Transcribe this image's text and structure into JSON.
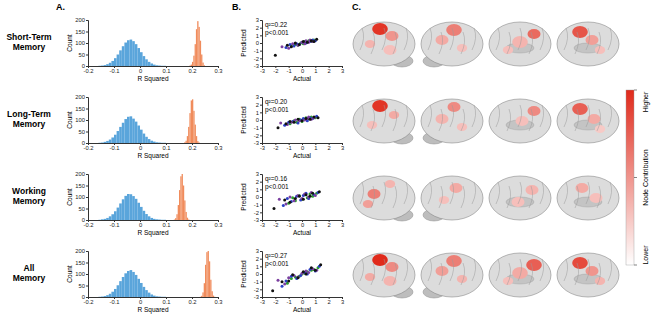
{
  "panel_labels": [
    "A.",
    "B.",
    "C."
  ],
  "row_labels": [
    "Short-Term Memory",
    "Long-Term Memory",
    "Working Memory",
    "All Memory"
  ],
  "colorbar": {
    "title": "Node Contribution",
    "high_label": "Higher",
    "low_label": "Lower"
  },
  "chart_data": [
    {
      "type": "histogram",
      "xlabel": "R Squared",
      "ylabel": "Count",
      "xlim": [
        -0.2,
        0.3
      ],
      "xticks": [
        -0.2,
        -0.1,
        0,
        0.1,
        0.2,
        0.3
      ],
      "ylim": [
        0,
        200
      ],
      "yticks": [
        0,
        50,
        100,
        150,
        200
      ],
      "series": [
        {
          "color": "#5aa5db",
          "bins": [
            -0.16,
            -0.15,
            -0.14,
            -0.13,
            -0.12,
            -0.11,
            -0.1,
            -0.09,
            -0.08,
            -0.07,
            -0.06,
            -0.05,
            -0.04,
            -0.03,
            -0.02,
            -0.01,
            0,
            0.01,
            0.02,
            0.03,
            0.04,
            0.05,
            0.06,
            0.07,
            0.08,
            0.09,
            0.1
          ],
          "values": [
            1,
            2,
            4,
            8,
            14,
            22,
            34,
            50,
            68,
            86,
            102,
            112,
            115,
            108,
            95,
            78,
            60,
            43,
            29,
            18,
            11,
            6,
            3,
            2,
            1,
            1
          ]
        },
        {
          "color": "#f08c5c",
          "bins": [
            0.19,
            0.195,
            0.2,
            0.205,
            0.21,
            0.215,
            0.22,
            0.225,
            0.23,
            0.235,
            0.24,
            0.245,
            0.25
          ],
          "values": [
            2,
            6,
            18,
            45,
            95,
            160,
            195,
            170,
            110,
            50,
            15,
            3
          ]
        }
      ]
    },
    {
      "type": "histogram",
      "xlabel": "R Squared",
      "ylabel": "Count",
      "xlim": [
        -0.2,
        0.3
      ],
      "xticks": [
        -0.2,
        -0.1,
        0,
        0.1,
        0.2,
        0.3
      ],
      "ylim": [
        0,
        200
      ],
      "yticks": [
        0,
        50,
        100,
        150,
        200
      ],
      "series": [
        {
          "color": "#5aa5db",
          "bins": [
            -0.16,
            -0.15,
            -0.14,
            -0.13,
            -0.12,
            -0.11,
            -0.1,
            -0.09,
            -0.08,
            -0.07,
            -0.06,
            -0.05,
            -0.04,
            -0.03,
            -0.02,
            -0.01,
            0,
            0.01,
            0.02,
            0.03,
            0.04,
            0.05,
            0.06,
            0.07,
            0.08,
            0.09,
            0.1
          ],
          "values": [
            1,
            2,
            5,
            9,
            15,
            24,
            36,
            52,
            70,
            88,
            104,
            114,
            116,
            106,
            93,
            76,
            58,
            41,
            27,
            17,
            10,
            6,
            3,
            2,
            1,
            1
          ]
        },
        {
          "color": "#f08c5c",
          "bins": [
            0.17,
            0.175,
            0.18,
            0.185,
            0.19,
            0.195,
            0.2,
            0.205,
            0.21,
            0.215,
            0.22,
            0.225,
            0.23
          ],
          "values": [
            3,
            10,
            30,
            70,
            130,
            185,
            190,
            140,
            80,
            30,
            8,
            2
          ]
        }
      ]
    },
    {
      "type": "histogram",
      "xlabel": "R Squared",
      "ylabel": "Count",
      "xlim": [
        -0.2,
        0.3
      ],
      "xticks": [
        -0.2,
        -0.1,
        0,
        0.1,
        0.2,
        0.3
      ],
      "ylim": [
        0,
        200
      ],
      "yticks": [
        0,
        50,
        100,
        150,
        200
      ],
      "series": [
        {
          "color": "#5aa5db",
          "bins": [
            -0.16,
            -0.15,
            -0.14,
            -0.13,
            -0.12,
            -0.11,
            -0.1,
            -0.09,
            -0.08,
            -0.07,
            -0.06,
            -0.05,
            -0.04,
            -0.03,
            -0.02,
            -0.01,
            0,
            0.01,
            0.02,
            0.03,
            0.04,
            0.05,
            0.06,
            0.07,
            0.08,
            0.09,
            0.1
          ],
          "values": [
            1,
            3,
            5,
            9,
            16,
            25,
            38,
            54,
            72,
            90,
            105,
            113,
            112,
            104,
            92,
            75,
            57,
            40,
            26,
            16,
            9,
            5,
            3,
            2,
            1,
            1
          ]
        },
        {
          "color": "#f08c5c",
          "bins": [
            0.13,
            0.135,
            0.14,
            0.145,
            0.15,
            0.155,
            0.16,
            0.165,
            0.17,
            0.175,
            0.18,
            0.185,
            0.19
          ],
          "values": [
            2,
            8,
            25,
            65,
            130,
            190,
            200,
            150,
            85,
            35,
            10,
            2
          ]
        }
      ]
    },
    {
      "type": "histogram",
      "xlabel": "R Squared",
      "ylabel": "Count",
      "xlim": [
        -0.2,
        0.3
      ],
      "xticks": [
        -0.2,
        -0.1,
        0,
        0.1,
        0.2,
        0.3
      ],
      "ylim": [
        0,
        200
      ],
      "yticks": [
        0,
        50,
        100,
        150,
        200
      ],
      "series": [
        {
          "color": "#5aa5db",
          "bins": [
            -0.16,
            -0.15,
            -0.14,
            -0.13,
            -0.12,
            -0.11,
            -0.1,
            -0.09,
            -0.08,
            -0.07,
            -0.06,
            -0.05,
            -0.04,
            -0.03,
            -0.02,
            -0.01,
            0,
            0.01,
            0.02,
            0.03,
            0.04,
            0.05,
            0.06,
            0.07,
            0.08,
            0.09,
            0.1
          ],
          "values": [
            1,
            2,
            4,
            8,
            14,
            23,
            35,
            51,
            69,
            87,
            103,
            113,
            117,
            109,
            96,
            79,
            61,
            44,
            30,
            19,
            11,
            6,
            3,
            2,
            1,
            1
          ]
        },
        {
          "color": "#f08c5c",
          "bins": [
            0.23,
            0.235,
            0.24,
            0.245,
            0.25,
            0.255,
            0.26,
            0.265,
            0.27,
            0.275,
            0.28,
            0.285,
            0.29
          ],
          "values": [
            1,
            5,
            20,
            60,
            140,
            195,
            200,
            155,
            75,
            25,
            6,
            1
          ]
        }
      ]
    },
    {
      "type": "scatter",
      "xlabel": "Actual",
      "ylabel": "Predicted",
      "xlim": [
        -3,
        3
      ],
      "xticks": [
        -3,
        -2,
        -1,
        0,
        1,
        2,
        3
      ],
      "ylim": [
        -3,
        3
      ],
      "yticks": [
        -3,
        -2,
        -1,
        0,
        1,
        2,
        3
      ],
      "annotations": [
        "q²=0.22",
        "p<0.001"
      ],
      "series": [
        {
          "color": "#2ca02c",
          "x": [
            -0.8,
            -0.5,
            -0.3,
            -0.1,
            0.1,
            0.2,
            0.4,
            0.5,
            0.7,
            0.9
          ],
          "values": [
            -0.4,
            -0.2,
            -0.3,
            0.0,
            -0.1,
            0.2,
            0.1,
            0.3,
            0.2,
            0.4
          ]
        },
        {
          "color": "#2b3fc4",
          "x": [
            -1.2,
            -0.9,
            -0.6,
            -0.4,
            -0.2,
            0.0,
            0.3,
            0.6,
            0.8,
            1.0
          ],
          "values": [
            -0.6,
            -0.2,
            -0.4,
            -0.1,
            -0.2,
            0.1,
            0.0,
            0.2,
            0.4,
            0.3
          ]
        },
        {
          "color": "#7b3fa0",
          "x": [
            -1.5,
            -1.0,
            -0.7,
            -0.3,
            0.0,
            0.2,
            0.3,
            0.5,
            0.6,
            0.8
          ],
          "values": [
            -0.5,
            -0.7,
            -0.1,
            -0.3,
            0.1,
            -0.1,
            0.3,
            0.1,
            0.4,
            0.2
          ]
        },
        {
          "color": "#111111",
          "x": [
            -2.0,
            -1.1,
            -0.8,
            -0.5,
            -0.2,
            0.1,
            0.4,
            0.7,
            0.9,
            1.1
          ],
          "values": [
            -1.6,
            -0.3,
            -0.5,
            0.0,
            -0.2,
            0.2,
            0.1,
            0.3,
            0.2,
            0.5
          ]
        }
      ]
    },
    {
      "type": "scatter",
      "xlabel": "Actual",
      "ylabel": "Predicted",
      "xlim": [
        -3,
        3
      ],
      "xticks": [
        -3,
        -2,
        -1,
        0,
        1,
        2,
        3
      ],
      "ylim": [
        -3,
        3
      ],
      "yticks": [
        -3,
        -2,
        -1,
        0,
        1,
        2,
        3
      ],
      "annotations": [
        "q²=0.20",
        "p<0.001"
      ],
      "series": [
        {
          "color": "#2ca02c",
          "x": [
            -0.9,
            -0.6,
            -0.4,
            -0.2,
            0.0,
            0.2,
            0.3,
            0.5,
            0.7,
            1.0
          ],
          "values": [
            -0.5,
            -0.1,
            -0.3,
            0.1,
            -0.2,
            0.1,
            0.3,
            0.2,
            0.4,
            0.3
          ]
        },
        {
          "color": "#2b3fc4",
          "x": [
            -1.3,
            -1.0,
            -0.7,
            -0.3,
            -0.1,
            0.1,
            0.4,
            0.6,
            0.8,
            1.1
          ],
          "values": [
            -0.7,
            -0.3,
            -0.2,
            -0.4,
            0.0,
            0.2,
            -0.1,
            0.3,
            0.2,
            0.5
          ]
        },
        {
          "color": "#7b3fa0",
          "x": [
            -1.6,
            -1.1,
            -0.8,
            -0.5,
            -0.2,
            0.2,
            0.4,
            0.5,
            0.7,
            0.9
          ],
          "values": [
            -0.4,
            -0.6,
            -0.3,
            0.0,
            -0.1,
            0.0,
            0.2,
            0.4,
            0.1,
            0.3
          ]
        },
        {
          "color": "#111111",
          "x": [
            -1.8,
            -1.2,
            -0.9,
            -0.6,
            -0.3,
            0.0,
            0.3,
            0.6,
            0.9,
            1.2
          ],
          "values": [
            -1.0,
            -0.5,
            -0.2,
            -0.3,
            0.1,
            -0.1,
            0.2,
            0.1,
            0.4,
            0.3
          ]
        }
      ]
    },
    {
      "type": "scatter",
      "xlabel": "Actual",
      "ylabel": "Predicted",
      "xlim": [
        -3,
        3
      ],
      "xticks": [
        -3,
        -2,
        -1,
        0,
        1,
        2,
        3
      ],
      "ylim": [
        -3,
        3
      ],
      "yticks": [
        -3,
        -2,
        -1,
        0,
        1,
        2,
        3
      ],
      "annotations": [
        "q²=0.16",
        "p<0.001"
      ],
      "series": [
        {
          "color": "#2ca02c",
          "x": [
            -1.0,
            -0.7,
            -0.5,
            -0.2,
            0.0,
            0.2,
            0.4,
            0.6,
            0.8,
            1.1
          ],
          "values": [
            -0.8,
            -0.1,
            -0.5,
            0.2,
            -0.3,
            0.3,
            -0.1,
            0.4,
            0.1,
            0.5
          ]
        },
        {
          "color": "#2b3fc4",
          "x": [
            -1.4,
            -1.1,
            -0.8,
            -0.4,
            -0.1,
            0.1,
            0.3,
            0.5,
            0.9,
            1.2
          ],
          "values": [
            -1.1,
            -0.2,
            -0.6,
            0.1,
            -0.4,
            0.2,
            0.5,
            -0.2,
            0.3,
            0.6
          ]
        },
        {
          "color": "#7b3fa0",
          "x": [
            -1.7,
            -1.2,
            -0.9,
            -0.6,
            -0.3,
            0.0,
            0.2,
            0.5,
            0.7,
            1.0
          ],
          "values": [
            -0.3,
            -0.9,
            0.0,
            -0.5,
            0.2,
            -0.2,
            0.4,
            0.0,
            0.6,
            0.2
          ]
        },
        {
          "color": "#111111",
          "x": [
            -2.1,
            -1.3,
            -0.9,
            -0.5,
            -0.2,
            0.1,
            0.3,
            0.6,
            0.8,
            1.3
          ],
          "values": [
            -1.5,
            -0.4,
            -0.7,
            -0.2,
            0.1,
            -0.3,
            0.3,
            0.1,
            0.5,
            0.7
          ]
        }
      ]
    },
    {
      "type": "scatter",
      "xlabel": "Actual",
      "ylabel": "Predicted",
      "xlim": [
        -3,
        3
      ],
      "xticks": [
        -3,
        -2,
        -1,
        0,
        1,
        2,
        3
      ],
      "ylim": [
        -3,
        3
      ],
      "yticks": [
        -3,
        -2,
        -1,
        0,
        1,
        2,
        3
      ],
      "annotations": [
        "q²=0.27",
        "p<0.001"
      ],
      "series": [
        {
          "color": "#2ca02c",
          "x": [
            -1.1,
            -0.8,
            -0.5,
            -0.2,
            0.0,
            0.2,
            0.4,
            0.7,
            0.9,
            1.2
          ],
          "values": [
            -1.2,
            -0.6,
            -0.4,
            -0.3,
            0.0,
            0.1,
            0.3,
            0.5,
            0.6,
            0.8
          ]
        },
        {
          "color": "#2b3fc4",
          "x": [
            -1.5,
            -1.2,
            -0.8,
            -0.4,
            -0.1,
            0.2,
            0.4,
            0.6,
            1.0,
            1.3
          ],
          "values": [
            -1.6,
            -0.9,
            -0.3,
            -0.6,
            -0.2,
            0.2,
            0.0,
            0.6,
            0.4,
            1.0
          ]
        },
        {
          "color": "#7b3fa0",
          "x": [
            -1.8,
            -1.3,
            -1.0,
            -0.6,
            -0.3,
            0.0,
            0.3,
            0.5,
            0.8,
            1.1
          ],
          "values": [
            -0.8,
            -1.3,
            -0.5,
            -0.2,
            -0.4,
            0.1,
            0.4,
            0.2,
            0.7,
            0.5
          ]
        },
        {
          "color": "#111111",
          "x": [
            -2.2,
            -1.5,
            -1.0,
            -0.7,
            -0.3,
            0.1,
            0.3,
            0.7,
            1.0,
            1.4
          ],
          "values": [
            -2.2,
            -1.0,
            -0.9,
            -0.1,
            -0.5,
            0.3,
            0.0,
            0.8,
            0.5,
            1.2
          ]
        }
      ]
    }
  ]
}
